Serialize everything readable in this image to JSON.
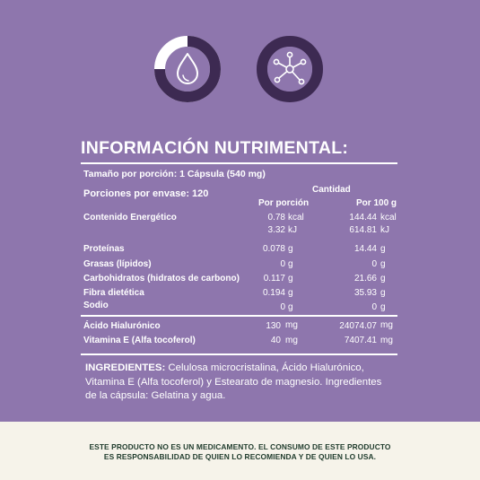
{
  "title": "INFORMACIÓN NUTRIMENTAL:",
  "serving_size": "Tamaño por porción: 1 Cápsula (540 mg)",
  "servings_per_container": "Porciones por envase:  120",
  "headers": {
    "cantidad": "Cantidad",
    "por_porcion": "Por porción",
    "por_100g": "Por 100 g"
  },
  "energy": {
    "label": "Contenido Energético",
    "rows": [
      {
        "porcion": "0.78",
        "u1": "kcal",
        "cien": "144.44",
        "u2": "kcal"
      },
      {
        "porcion": "3.32",
        "u1": "kJ",
        "cien": "614.81",
        "u2": "kJ"
      }
    ]
  },
  "nutrients": [
    {
      "label": "Proteínas",
      "porcion": "0.078",
      "u1": "g",
      "cien": "14.44",
      "u2": "g"
    },
    {
      "label": "Grasas (lípidos)",
      "porcion": "0",
      "u1": "g",
      "cien": "0",
      "u2": "g"
    },
    {
      "label": "Carbohidratos (hidratos de carbono)",
      "porcion": "0.117",
      "u1": "g",
      "cien": "21.66",
      "u2": "g"
    },
    {
      "label": "Fibra dietética",
      "porcion": "0.194",
      "u1": "g",
      "cien": "35.93",
      "u2": "g"
    },
    {
      "label": "Sodio",
      "porcion": "0",
      "u1": "g",
      "cien": "0",
      "u2": "g"
    }
  ],
  "actives": [
    {
      "label": "Ácido Hialurónico",
      "porcion": "130",
      "u1": "mg",
      "cien": "24074.07",
      "u2": "mg"
    },
    {
      "label": "Vitamina E (Alfa tocoferol)",
      "porcion": "40",
      "u1": "mg",
      "cien": "7407.41",
      "u2": "mg"
    }
  ],
  "ingredients": {
    "label": "INGREDIENTES:",
    "text": " Celulosa microcristalina, Ácido Hialurónico, Vitamina E (Alfa tocoferol) y Estearato de magnesio. Ingredientes de la cápsula: Gelatina y agua."
  },
  "disclaimer": {
    "line1": "ESTE PRODUCTO NO ES UN MEDICAMENTO. EL CONSUMO DE ESTE PRODUCTO",
    "line2": "ES RESPONSABILIDAD DE QUIEN LO RECOMIENDA Y DE QUIEN LO USA."
  },
  "colors": {
    "background": "#8e76ad",
    "ring": "#3d2a52",
    "footer": "#f6f3ea",
    "disclaimer_text": "#1f3b2c"
  },
  "icons": [
    "water-drop-icon",
    "molecule-icon"
  ]
}
